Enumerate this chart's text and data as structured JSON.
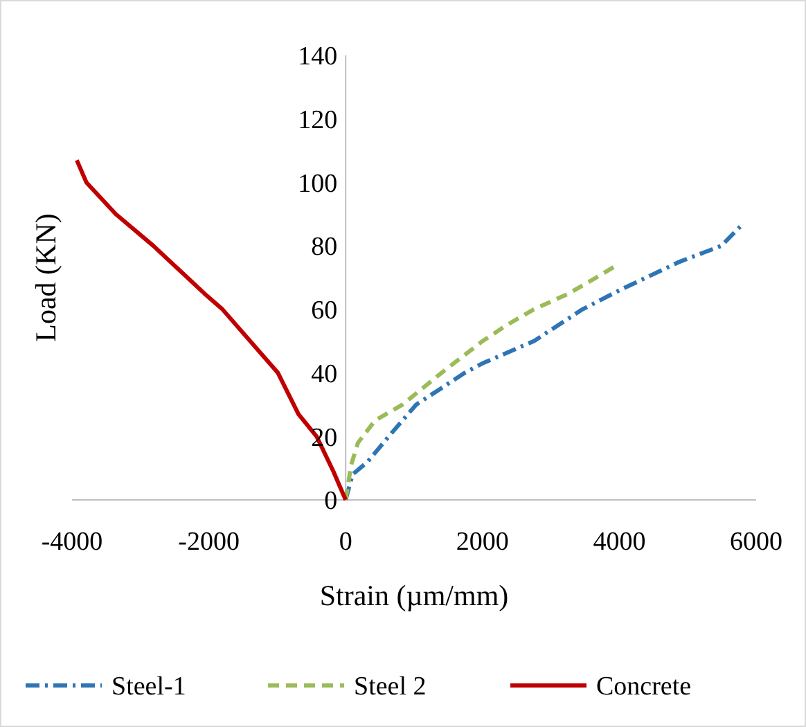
{
  "chart_data": {
    "type": "line",
    "xlabel": "Strain (µm/mm)",
    "ylabel": "Load (KN)",
    "xlim": [
      -4000,
      6000
    ],
    "xticks": [
      -4000,
      -2000,
      0,
      2000,
      4000,
      6000
    ],
    "ylim": [
      0,
      140
    ],
    "yticks": [
      0,
      20,
      40,
      60,
      80,
      100,
      120,
      140
    ],
    "grid": false,
    "legend": "bottom",
    "series": [
      {
        "name": "Steel-1",
        "color": "#2e75b6",
        "line_style": "dashdot",
        "x": [
          0,
          100,
          320,
          630,
          1030,
          1740,
          2000,
          2750,
          3460,
          4000,
          4880,
          5490,
          5810
        ],
        "values": [
          0,
          8,
          12,
          20,
          30,
          40,
          43,
          50,
          60,
          66,
          75,
          80,
          87
        ]
      },
      {
        "name": "Steel 2",
        "color": "#9bbb59",
        "line_style": "dashed",
        "x": [
          0,
          80,
          180,
          430,
          830,
          1400,
          2000,
          2350,
          2750,
          3260,
          3660,
          3970
        ],
        "values": [
          0,
          11,
          18,
          25,
          30,
          40,
          50,
          55,
          60,
          65,
          70,
          74
        ]
      },
      {
        "name": "Concrete",
        "color": "#c00000",
        "line_style": "solid",
        "x": [
          0,
          -180,
          -425,
          -690,
          -990,
          -1800,
          -2065,
          -2810,
          -3360,
          -3790,
          -3930
        ],
        "values": [
          0,
          9,
          20,
          27,
          40,
          60,
          65,
          80,
          90,
          100,
          107
        ]
      }
    ]
  }
}
